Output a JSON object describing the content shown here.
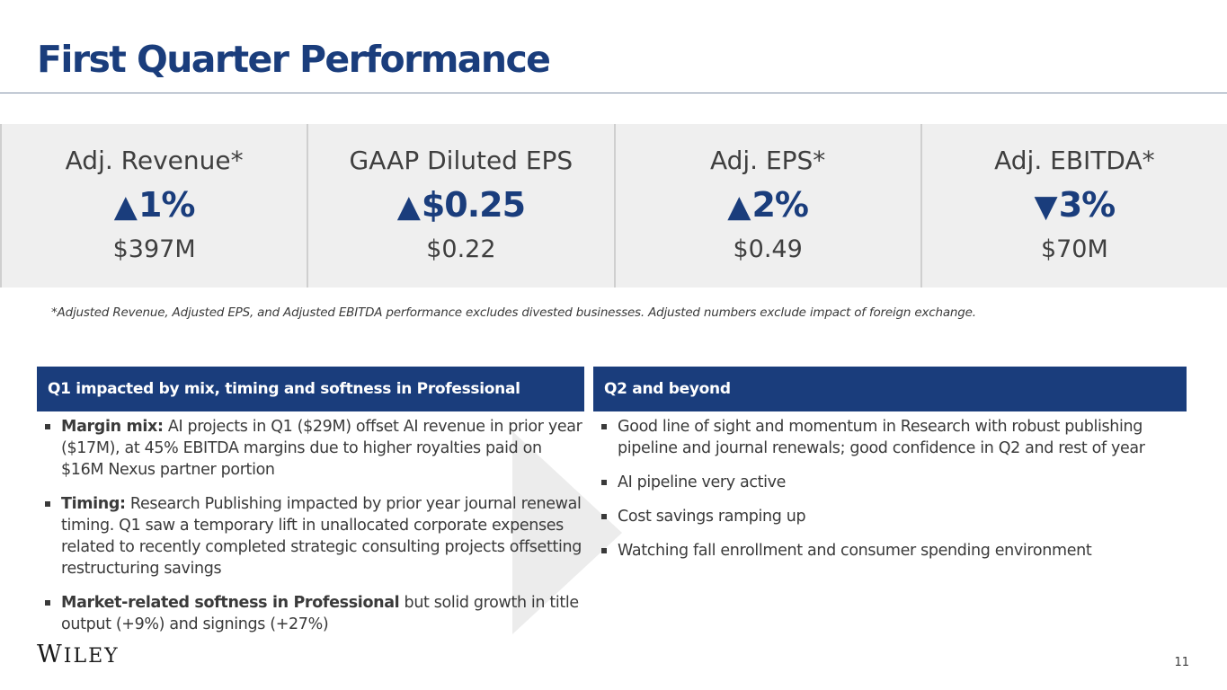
{
  "title": "First Quarter Performance",
  "kpis": [
    {
      "label": "Adj. Revenue*",
      "arrow": "▲",
      "change": "1%",
      "value": "$397M"
    },
    {
      "label": "GAAP Diluted EPS",
      "arrow": "▲",
      "change": "$0.25",
      "value": "$0.22"
    },
    {
      "label": "Adj. EPS*",
      "arrow": "▲",
      "change": "2%",
      "value": "$0.49"
    },
    {
      "label": "Adj. EBITDA*",
      "arrow": "▼",
      "change": "3%",
      "value": "$70M"
    }
  ],
  "footnote": "*Adjusted Revenue, Adjusted EPS, and Adjusted EBITDA performance excludes divested businesses.  Adjusted numbers exclude impact of foreign exchange.",
  "left_panel": {
    "heading": "Q1 impacted by mix, timing and softness in Professional",
    "bullets": [
      {
        "bold": "Margin mix:",
        "text": "  AI projects in Q1 ($29M) offset AI revenue in prior year ($17M), at 45% EBITDA margins due to higher royalties paid on $16M Nexus partner portion"
      },
      {
        "bold": "Timing:",
        "text": "  Research Publishing impacted by prior year journal renewal timing.  Q1 saw a temporary lift in unallocated corporate expenses related to recently completed strategic consulting projects offsetting restructuring savings"
      },
      {
        "bold": "Market-related softness in Professional",
        "text": " but solid growth in title output (+9%) and signings (+27%)"
      }
    ]
  },
  "right_panel": {
    "heading": "Q2 and beyond",
    "bullets": [
      "Good line of sight and momentum in Research with robust publishing pipeline and journal renewals; good confidence in Q2 and rest of year",
      "AI pipeline very active",
      "Cost savings ramping up",
      "Watching fall enrollment and consumer spending environment"
    ]
  },
  "logo": {
    "first": "W",
    "rest": "ILEY"
  },
  "page_number": "11",
  "colors": {
    "brand_navy": "#1a3d7c",
    "band_gray": "#efefef"
  }
}
